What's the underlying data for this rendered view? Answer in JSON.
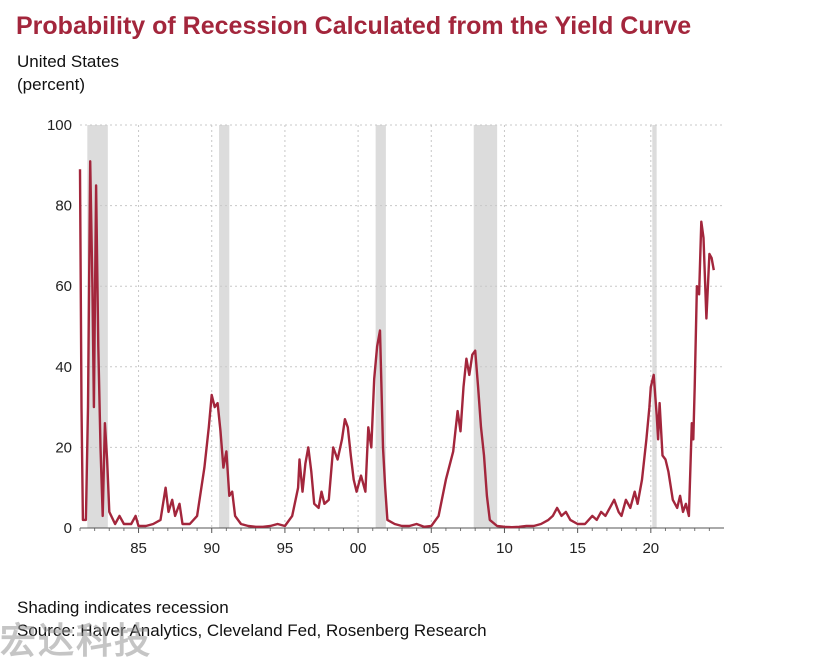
{
  "colors": {
    "title": "#a3263c",
    "line": "#a3263c",
    "recession": "#dcdcdc",
    "grid": "#c8c8c8"
  },
  "chart_data": {
    "type": "line",
    "title": "Probability of Recession Calculated from the Yield Curve",
    "subtitle_1": "United States",
    "subtitle_2": "(percent)",
    "xlabel": "",
    "ylabel": "",
    "xlim": [
      1981.0,
      2025.0
    ],
    "ylim": [
      0,
      100
    ],
    "grid": true,
    "y_ticks": [
      0,
      20,
      40,
      60,
      80,
      100
    ],
    "x_ticks": [
      {
        "year": 1985,
        "label": "85"
      },
      {
        "year": 1990,
        "label": "90"
      },
      {
        "year": 1995,
        "label": "95"
      },
      {
        "year": 2000,
        "label": "00"
      },
      {
        "year": 2005,
        "label": "05"
      },
      {
        "year": 2010,
        "label": "10"
      },
      {
        "year": 2015,
        "label": "15"
      },
      {
        "year": 2020,
        "label": "20"
      }
    ],
    "recessions": [
      {
        "start": 1981.5,
        "end": 1982.9
      },
      {
        "start": 1990.5,
        "end": 1991.2
      },
      {
        "start": 2001.2,
        "end": 2001.9
      },
      {
        "start": 2007.9,
        "end": 2009.5
      },
      {
        "start": 2020.1,
        "end": 2020.4
      }
    ],
    "series": [
      {
        "points": [
          [
            1981.0,
            89
          ],
          [
            1981.1,
            30
          ],
          [
            1981.2,
            2
          ],
          [
            1981.4,
            2
          ],
          [
            1981.55,
            30
          ],
          [
            1981.7,
            91
          ],
          [
            1981.85,
            60
          ],
          [
            1981.95,
            30
          ],
          [
            1982.1,
            85
          ],
          [
            1982.25,
            45
          ],
          [
            1982.4,
            20
          ],
          [
            1982.55,
            3
          ],
          [
            1982.7,
            26
          ],
          [
            1982.85,
            17
          ],
          [
            1983.0,
            4
          ],
          [
            1983.4,
            1
          ],
          [
            1983.7,
            3
          ],
          [
            1984.0,
            1
          ],
          [
            1984.5,
            1
          ],
          [
            1984.8,
            3
          ],
          [
            1985.0,
            0.5
          ],
          [
            1985.5,
            0.5
          ],
          [
            1986.0,
            1
          ],
          [
            1986.5,
            2
          ],
          [
            1986.85,
            10
          ],
          [
            1987.05,
            4
          ],
          [
            1987.3,
            7
          ],
          [
            1987.5,
            3
          ],
          [
            1987.8,
            6
          ],
          [
            1988.0,
            1
          ],
          [
            1988.5,
            1
          ],
          [
            1989.0,
            3
          ],
          [
            1989.5,
            15
          ],
          [
            1989.8,
            25
          ],
          [
            1990.0,
            33
          ],
          [
            1990.2,
            30
          ],
          [
            1990.4,
            31
          ],
          [
            1990.6,
            24
          ],
          [
            1990.8,
            15
          ],
          [
            1991.0,
            19
          ],
          [
            1991.2,
            8
          ],
          [
            1991.4,
            9
          ],
          [
            1991.6,
            3
          ],
          [
            1992.0,
            1
          ],
          [
            1992.5,
            0.5
          ],
          [
            1993.0,
            0.3
          ],
          [
            1993.5,
            0.3
          ],
          [
            1994.0,
            0.5
          ],
          [
            1994.5,
            1
          ],
          [
            1995.0,
            0.5
          ],
          [
            1995.5,
            3
          ],
          [
            1995.9,
            10
          ],
          [
            1996.0,
            17
          ],
          [
            1996.2,
            9
          ],
          [
            1996.4,
            16
          ],
          [
            1996.6,
            20
          ],
          [
            1996.8,
            14
          ],
          [
            1997.0,
            6
          ],
          [
            1997.3,
            5
          ],
          [
            1997.5,
            9
          ],
          [
            1997.7,
            6
          ],
          [
            1998.0,
            7
          ],
          [
            1998.3,
            20
          ],
          [
            1998.6,
            17
          ],
          [
            1998.9,
            22
          ],
          [
            1999.1,
            27
          ],
          [
            1999.3,
            25
          ],
          [
            1999.5,
            18
          ],
          [
            1999.7,
            12
          ],
          [
            1999.9,
            9
          ],
          [
            2000.2,
            13
          ],
          [
            2000.5,
            9
          ],
          [
            2000.7,
            25
          ],
          [
            2000.9,
            20
          ],
          [
            2001.1,
            37
          ],
          [
            2001.3,
            45
          ],
          [
            2001.5,
            49
          ],
          [
            2001.7,
            20
          ],
          [
            2001.85,
            10
          ],
          [
            2002.0,
            2
          ],
          [
            2002.5,
            1
          ],
          [
            2003.0,
            0.5
          ],
          [
            2003.5,
            0.5
          ],
          [
            2004.0,
            1
          ],
          [
            2004.5,
            0.3
          ],
          [
            2005.0,
            0.5
          ],
          [
            2005.5,
            3
          ],
          [
            2006.0,
            12
          ],
          [
            2006.5,
            19
          ],
          [
            2006.8,
            29
          ],
          [
            2007.0,
            24
          ],
          [
            2007.2,
            35
          ],
          [
            2007.4,
            42
          ],
          [
            2007.6,
            38
          ],
          [
            2007.8,
            43
          ],
          [
            2008.0,
            44
          ],
          [
            2008.2,
            35
          ],
          [
            2008.4,
            25
          ],
          [
            2008.6,
            18
          ],
          [
            2008.8,
            8
          ],
          [
            2009.0,
            2
          ],
          [
            2009.5,
            0.5
          ],
          [
            2010.0,
            0.3
          ],
          [
            2010.5,
            0.2
          ],
          [
            2011.0,
            0.3
          ],
          [
            2011.5,
            0.5
          ],
          [
            2012.0,
            0.5
          ],
          [
            2012.5,
            1
          ],
          [
            2013.0,
            2
          ],
          [
            2013.3,
            3
          ],
          [
            2013.6,
            5
          ],
          [
            2013.9,
            3
          ],
          [
            2014.2,
            4
          ],
          [
            2014.5,
            2
          ],
          [
            2015.0,
            1
          ],
          [
            2015.5,
            1
          ],
          [
            2016.0,
            3
          ],
          [
            2016.3,
            2
          ],
          [
            2016.6,
            4
          ],
          [
            2016.9,
            3
          ],
          [
            2017.2,
            5
          ],
          [
            2017.5,
            7
          ],
          [
            2017.8,
            4
          ],
          [
            2018.0,
            3
          ],
          [
            2018.3,
            7
          ],
          [
            2018.6,
            5
          ],
          [
            2018.9,
            9
          ],
          [
            2019.1,
            6
          ],
          [
            2019.4,
            12
          ],
          [
            2019.7,
            22
          ],
          [
            2019.9,
            30
          ],
          [
            2020.0,
            35
          ],
          [
            2020.2,
            38
          ],
          [
            2020.4,
            28
          ],
          [
            2020.5,
            22
          ],
          [
            2020.6,
            31
          ],
          [
            2020.8,
            18
          ],
          [
            2021.0,
            17
          ],
          [
            2021.2,
            14
          ],
          [
            2021.5,
            7
          ],
          [
            2021.8,
            5
          ],
          [
            2022.0,
            8
          ],
          [
            2022.2,
            4
          ],
          [
            2022.4,
            6
          ],
          [
            2022.6,
            3
          ],
          [
            2022.8,
            26
          ],
          [
            2022.9,
            22
          ],
          [
            2023.0,
            35
          ],
          [
            2023.15,
            60
          ],
          [
            2023.3,
            58
          ],
          [
            2023.45,
            76
          ],
          [
            2023.6,
            72
          ],
          [
            2023.8,
            52
          ],
          [
            2024.0,
            68
          ],
          [
            2024.15,
            67
          ],
          [
            2024.3,
            64
          ]
        ]
      }
    ]
  },
  "footer": {
    "note": "Shading indicates recession",
    "source": "Source: Haver Analytics, Cleveland Fed, Rosenberg Research"
  },
  "watermark": "宏达科技"
}
